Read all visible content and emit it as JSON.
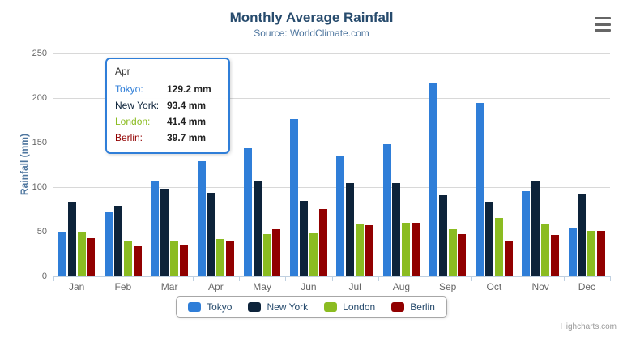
{
  "chart_data": {
    "type": "bar",
    "title": "Monthly Average Rainfall",
    "subtitle": "Source: WorldClimate.com",
    "xlabel": "",
    "ylabel": "Rainfall (mm)",
    "ylim": [
      0,
      250
    ],
    "ytick_interval": 50,
    "grid": true,
    "legend_position": "bottom",
    "categories": [
      "Jan",
      "Feb",
      "Mar",
      "Apr",
      "May",
      "Jun",
      "Jul",
      "Aug",
      "Sep",
      "Oct",
      "Nov",
      "Dec"
    ],
    "series": [
      {
        "name": "Tokyo",
        "color": "#2f7ed8",
        "values": [
          49.9,
          71.5,
          106.4,
          129.2,
          144.0,
          176.0,
          135.6,
          148.5,
          216.4,
          194.1,
          95.6,
          54.4
        ]
      },
      {
        "name": "New York",
        "color": "#0d233a",
        "values": [
          83.6,
          78.8,
          98.5,
          93.4,
          106.0,
          84.5,
          105.0,
          104.3,
          91.2,
          83.5,
          106.6,
          92.3
        ]
      },
      {
        "name": "London",
        "color": "#8bbc21",
        "values": [
          48.9,
          38.8,
          39.3,
          41.4,
          47.0,
          48.3,
          59.0,
          59.6,
          52.4,
          65.2,
          59.3,
          51.2
        ]
      },
      {
        "name": "Berlin",
        "color": "#910000",
        "values": [
          42.4,
          33.2,
          34.5,
          39.7,
          52.6,
          75.5,
          57.4,
          60.4,
          47.6,
          39.1,
          46.8,
          51.1
        ]
      }
    ]
  },
  "tooltip": {
    "header": "Apr",
    "border_color": "#2f7ed8",
    "rows": [
      {
        "label": "Tokyo:",
        "value": "129.2 mm",
        "color": "#2f7ed8"
      },
      {
        "label": "New York:",
        "value": "93.4 mm",
        "color": "#0d233a"
      },
      {
        "label": "London:",
        "value": "41.4 mm",
        "color": "#8bbc21"
      },
      {
        "label": "Berlin:",
        "value": "39.7 mm",
        "color": "#910000"
      }
    ]
  },
  "credits": "Highcharts.com",
  "icons": {
    "export_menu": "hamburger-menu-icon"
  }
}
